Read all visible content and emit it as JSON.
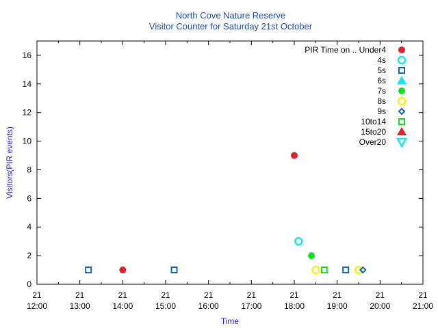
{
  "chart_data": {
    "type": "scatter",
    "title": "North Cove Nature Reserve",
    "subtitle": "Visitor Counter for Saturday 21st October",
    "xlabel": "Time",
    "ylabel": "Visitors(PIR events)",
    "xlim": [
      "12:00",
      "21:00"
    ],
    "ylim": [
      0,
      17
    ],
    "x_ticks": [
      {
        "value": "12:00",
        "day": "21",
        "time": "12:00"
      },
      {
        "value": "13:00",
        "day": "21",
        "time": "13:00"
      },
      {
        "value": "14:00",
        "day": "21",
        "time": "14:00"
      },
      {
        "value": "15:00",
        "day": "21",
        "time": "15:00"
      },
      {
        "value": "16:00",
        "day": "21",
        "time": "16:00"
      },
      {
        "value": "17:00",
        "day": "21",
        "time": "17:00"
      },
      {
        "value": "18:00",
        "day": "21",
        "time": "18:00"
      },
      {
        "value": "19:00",
        "day": "21",
        "time": "19:00"
      },
      {
        "value": "20:00",
        "day": "21",
        "time": "20:00"
      },
      {
        "value": "21:00",
        "day": "21",
        "time": "21:00"
      }
    ],
    "y_ticks": [
      "0",
      "2",
      "4",
      "6",
      "8",
      "10",
      "12",
      "14",
      "16"
    ],
    "legend_placement": "top-right",
    "grid": false,
    "series": [
      {
        "name": "PIR Time on .. Under4",
        "marker": "filled-circle",
        "color": "#e0202a",
        "points": [
          {
            "x": "14:00",
            "y": 1
          },
          {
            "x": "18:00",
            "y": 9
          }
        ]
      },
      {
        "name": "4s",
        "marker": "open-circle",
        "color": "#17e8f0",
        "points": [
          {
            "x": "18:06",
            "y": 3
          }
        ]
      },
      {
        "name": "5s",
        "marker": "open-square",
        "color": "#1464b4",
        "points": [
          {
            "x": "13:12",
            "y": 1
          },
          {
            "x": "15:12",
            "y": 1
          },
          {
            "x": "19:12",
            "y": 1
          }
        ]
      },
      {
        "name": "6s",
        "marker": "filled-triangle",
        "color": "#17e8f0",
        "points": []
      },
      {
        "name": "7s",
        "marker": "filled-circle",
        "color": "#10e020",
        "points": [
          {
            "x": "18:24",
            "y": 2
          }
        ]
      },
      {
        "name": "8s",
        "marker": "open-circle",
        "color": "#f5f50a",
        "points": [
          {
            "x": "18:30",
            "y": 1
          },
          {
            "x": "19:30",
            "y": 1
          }
        ]
      },
      {
        "name": "9s",
        "marker": "open-diamond",
        "color": "#1464b4",
        "points": [
          {
            "x": "19:36",
            "y": 1
          }
        ]
      },
      {
        "name": "10to14",
        "marker": "open-square",
        "color": "#10e020",
        "points": [
          {
            "x": "18:42",
            "y": 1
          }
        ]
      },
      {
        "name": "15to20",
        "marker": "filled-triangle",
        "color": "#e0202a",
        "points": []
      },
      {
        "name": "Over20",
        "marker": "open-triangle-down",
        "color": "#17e8f0",
        "points": []
      }
    ]
  }
}
